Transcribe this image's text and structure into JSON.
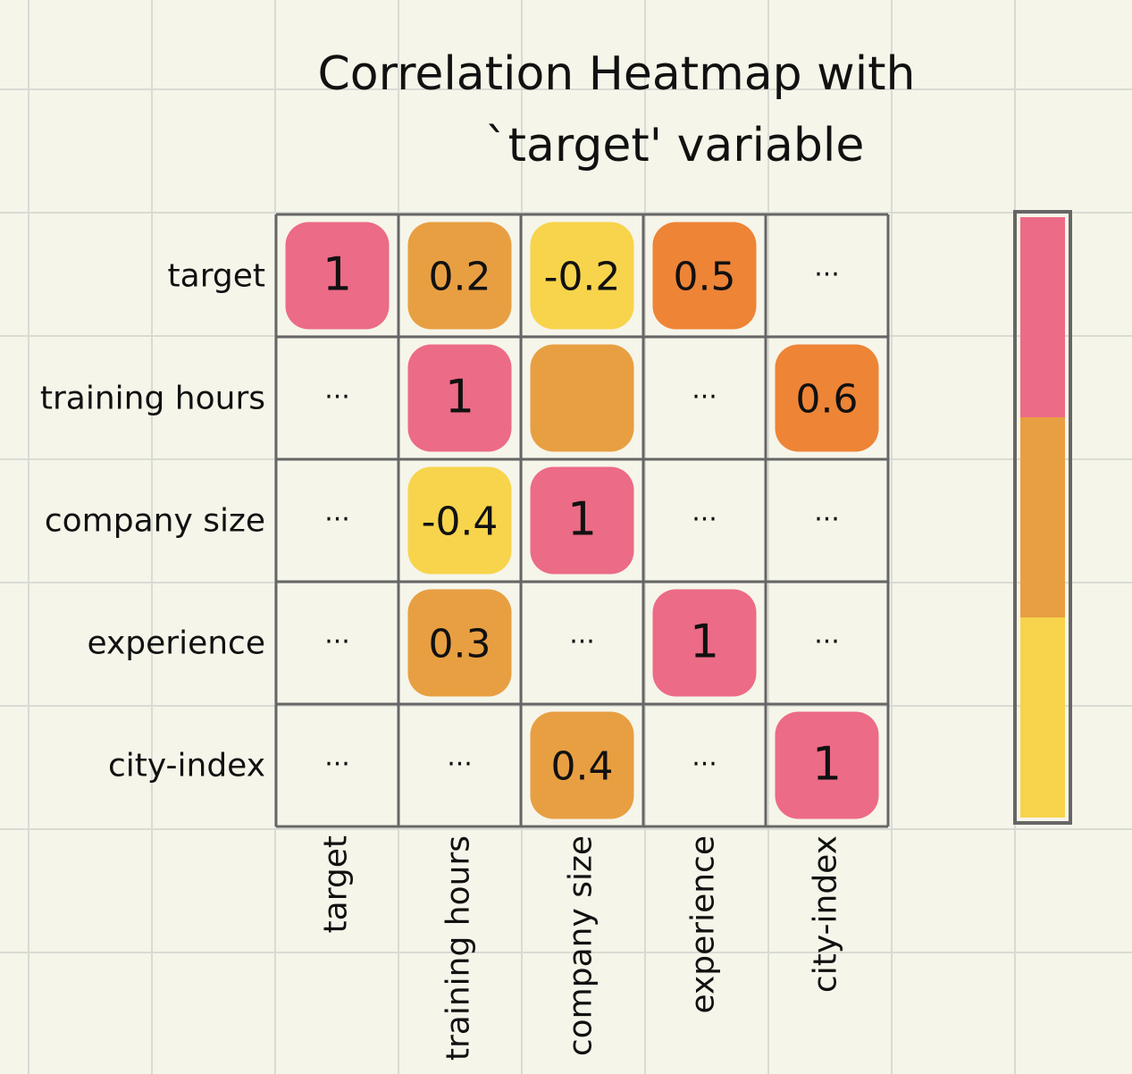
{
  "chart_data": {
    "type": "heatmap",
    "title_line1": "Correlation Heatmap with",
    "title_line2": "`target' variable",
    "row_labels": [
      "target",
      "training hours",
      "company size",
      "experience",
      "city-index"
    ],
    "col_labels": [
      "target",
      "training hours",
      "company size",
      "experience",
      "city-index"
    ],
    "cells": [
      [
        {
          "text": "1",
          "level": "high"
        },
        {
          "text": "0.2",
          "level": "mid"
        },
        {
          "text": "-0.2",
          "level": "low"
        },
        {
          "text": "0.5",
          "level": "mid-high"
        },
        {
          "text": "...",
          "level": "none"
        }
      ],
      [
        {
          "text": "...",
          "level": "none"
        },
        {
          "text": "1",
          "level": "high"
        },
        {
          "text": "",
          "level": "mid"
        },
        {
          "text": "...",
          "level": "none"
        },
        {
          "text": "0.6",
          "level": "mid-high"
        }
      ],
      [
        {
          "text": "...",
          "level": "none"
        },
        {
          "text": "-0.4",
          "level": "low"
        },
        {
          "text": "1",
          "level": "high"
        },
        {
          "text": "...",
          "level": "none"
        },
        {
          "text": "...",
          "level": "none"
        }
      ],
      [
        {
          "text": "...",
          "level": "none"
        },
        {
          "text": "0.3",
          "level": "mid"
        },
        {
          "text": "...",
          "level": "none"
        },
        {
          "text": "1",
          "level": "high"
        },
        {
          "text": "...",
          "level": "none"
        }
      ],
      [
        {
          "text": "...",
          "level": "none"
        },
        {
          "text": "...",
          "level": "none"
        },
        {
          "text": "0.4",
          "level": "mid"
        },
        {
          "text": "...",
          "level": "none"
        },
        {
          "text": "1",
          "level": "high"
        }
      ]
    ],
    "colors": {
      "high": "#ec6b86",
      "mid-high": "#ee8436",
      "mid": "#e89f42",
      "low": "#f7d44b",
      "grid": "#666666",
      "background": "#f6f5ea"
    },
    "colorbar": [
      "high",
      "mid",
      "low"
    ]
  }
}
